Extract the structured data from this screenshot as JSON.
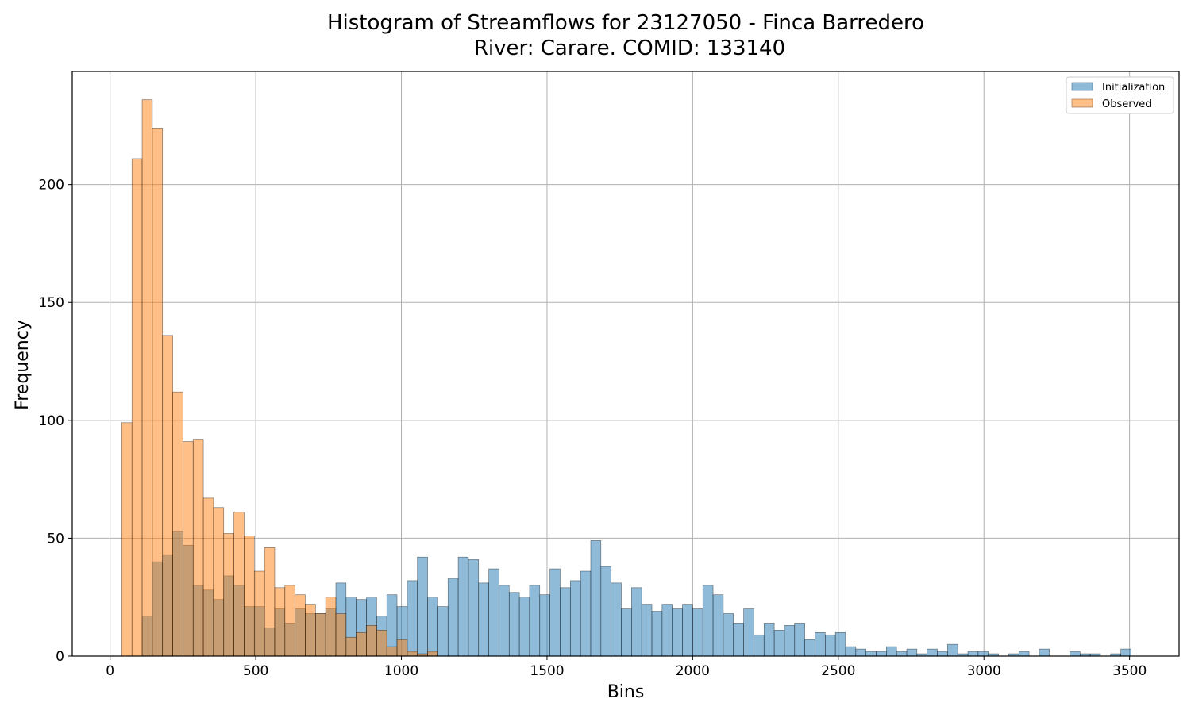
{
  "chart_data": {
    "type": "histogram",
    "title": "Histogram of Streamflows for 23127050 - Finca Barredero",
    "subtitle": "River: Carare. COMID: 133140",
    "xlabel": "Bins",
    "ylabel": "Frequency",
    "xlim": [
      -130,
      3670
    ],
    "ylim": [
      0,
      248
    ],
    "xticks": [
      0,
      500,
      1000,
      1500,
      2000,
      2500,
      3000,
      3500
    ],
    "yticks": [
      0,
      50,
      100,
      150,
      200
    ],
    "grid": true,
    "legend_position": "top-right",
    "bin_width": 35,
    "series": [
      {
        "name": "Initialization",
        "color": "#1f77b4",
        "fill_opacity": 0.5,
        "start": 110,
        "values": [
          17,
          40,
          43,
          53,
          47,
          30,
          28,
          24,
          34,
          30,
          21,
          21,
          12,
          20,
          14,
          20,
          18,
          18,
          20,
          31,
          25,
          24,
          25,
          17,
          26,
          21,
          32,
          42,
          25,
          21,
          33,
          42,
          41,
          31,
          37,
          30,
          27,
          25,
          30,
          26,
          37,
          29,
          32,
          36,
          49,
          38,
          31,
          20,
          29,
          22,
          19,
          22,
          20,
          22,
          20,
          30,
          26,
          18,
          14,
          20,
          9,
          14,
          11,
          13,
          14,
          7,
          10,
          9,
          10,
          4,
          3,
          2,
          2,
          4,
          2,
          3,
          1,
          3,
          2,
          5,
          1,
          2,
          2,
          1,
          0,
          1,
          2,
          0,
          3,
          0,
          0,
          2,
          1,
          1,
          0,
          1,
          3
        ]
      },
      {
        "name": "Observed",
        "color": "#ff7f0e",
        "fill_opacity": 0.5,
        "start": 40,
        "values": [
          99,
          211,
          236,
          224,
          136,
          112,
          91,
          92,
          67,
          63,
          52,
          61,
          51,
          36,
          46,
          29,
          30,
          26,
          22,
          18,
          25,
          18,
          8,
          10,
          13,
          11,
          4,
          7,
          2,
          1,
          2
        ]
      }
    ]
  }
}
